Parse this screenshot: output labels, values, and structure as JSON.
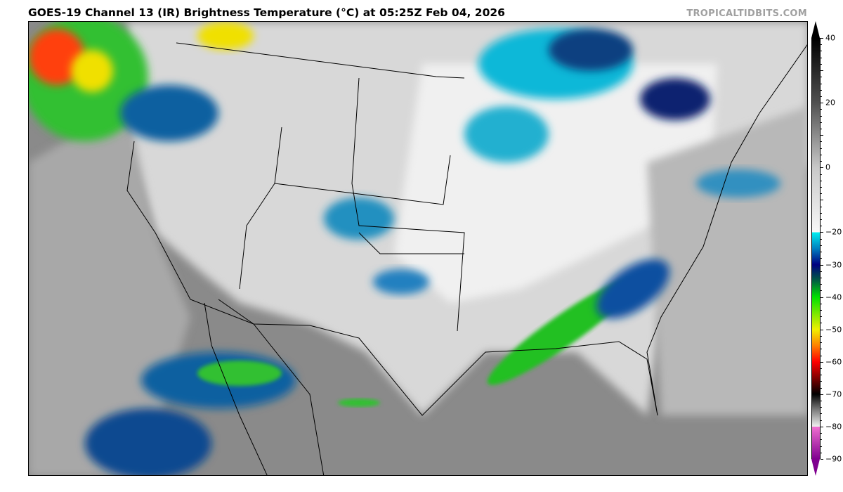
{
  "title": "GOES-19 Channel 13 (IR) Brightness Temperature (°C) at 05:25Z Feb 04, 2026",
  "credit": "TROPICALTIDBITS.COM",
  "colorbar": {
    "min": -90,
    "max": 40,
    "extend": "both",
    "ticks": [
      "40",
      "20",
      "0",
      "−20",
      "−30",
      "−40",
      "−50",
      "−60",
      "−70",
      "−80",
      "−90"
    ],
    "tick_values": [
      40,
      20,
      0,
      -20,
      -30,
      -40,
      -50,
      -60,
      -70,
      -80,
      -90
    ],
    "stops": [
      {
        "value": 40,
        "color": "#000000"
      },
      {
        "value": 20,
        "color": "#505050"
      },
      {
        "value": 0,
        "color": "#c8c8c8"
      },
      {
        "value": -20,
        "color": "#f8f8f8"
      },
      {
        "value": -20,
        "color": "#00f0f0"
      },
      {
        "value": -25,
        "color": "#0080c0"
      },
      {
        "value": -30,
        "color": "#000080"
      },
      {
        "value": -35,
        "color": "#006040"
      },
      {
        "value": -40,
        "color": "#00e000"
      },
      {
        "value": -50,
        "color": "#f0f000"
      },
      {
        "value": -55,
        "color": "#ff8000"
      },
      {
        "value": -60,
        "color": "#ff0000"
      },
      {
        "value": -65,
        "color": "#800000"
      },
      {
        "value": -70,
        "color": "#000000"
      },
      {
        "value": -75,
        "color": "#808080"
      },
      {
        "value": -80,
        "color": "#f0f0f0"
      },
      {
        "value": -80,
        "color": "#f070d0"
      },
      {
        "value": -90,
        "color": "#800090"
      }
    ]
  }
}
